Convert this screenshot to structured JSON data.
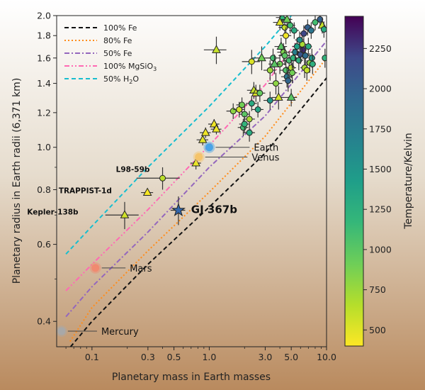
{
  "chart_data": {
    "type": "scatter",
    "title": "",
    "xlabel": "Planetary mass in Earth masses",
    "ylabel": "Planetary radius in Earth radii (6,371 km)",
    "xscale": "log",
    "yscale": "log",
    "xlim": [
      0.05,
      10.0
    ],
    "ylim": [
      0.35,
      2.0
    ],
    "x_ticks": [
      0.1,
      0.3,
      0.5,
      1.0,
      3.0,
      5.0,
      10.0
    ],
    "x_tick_labels": [
      "0.1",
      "0.3",
      "0.5",
      "1.0",
      "3.0",
      "5.0",
      "10.0"
    ],
    "y_ticks": [
      0.4,
      0.6,
      0.8,
      1.0,
      1.2,
      1.4,
      1.6,
      1.8,
      2.0
    ],
    "y_tick_labels": [
      "0.4",
      "0.6",
      "0.8",
      "1.0",
      "1.2",
      "1.4",
      "1.6",
      "1.8",
      "2.0"
    ],
    "legend_position": "top-left",
    "colorbar": {
      "label": "Temperature/Kelvin",
      "min": 400,
      "max": 2450,
      "ticks": [
        500,
        750,
        1000,
        1250,
        1500,
        1750,
        2000,
        2250
      ],
      "colormap": "viridis_r"
    },
    "composition_curves": [
      {
        "label": "100% Fe",
        "color": "#111111",
        "dash": "dashed",
        "points": [
          [
            0.06,
            0.34
          ],
          [
            0.1,
            0.4
          ],
          [
            0.3,
            0.54
          ],
          [
            1.0,
            0.73
          ],
          [
            3.0,
            0.97
          ],
          [
            10.0,
            1.44
          ]
        ]
      },
      {
        "label": "80% Fe",
        "color": "#ff8c1a",
        "dash": "dotted",
        "points": [
          [
            0.065,
            0.36
          ],
          [
            0.1,
            0.43
          ],
          [
            0.3,
            0.58
          ],
          [
            1.0,
            0.79
          ],
          [
            3.0,
            1.06
          ],
          [
            10.0,
            1.6
          ]
        ]
      },
      {
        "label": "50% Fe",
        "color": "#9467bd",
        "dash": "dashdot",
        "points": [
          [
            0.06,
            0.41
          ],
          [
            0.1,
            0.48
          ],
          [
            0.3,
            0.64
          ],
          [
            1.0,
            0.9
          ],
          [
            3.0,
            1.18
          ],
          [
            10.0,
            1.75
          ]
        ]
      },
      {
        "label": "100% MgSiO3",
        "label_base": "100% MgSiO",
        "label_sub": "3",
        "color": "#ff69b4",
        "dash": "dashdotdot",
        "points": [
          [
            0.06,
            0.47
          ],
          [
            0.1,
            0.54
          ],
          [
            0.3,
            0.72
          ],
          [
            1.0,
            1.01
          ],
          [
            3.0,
            1.39
          ],
          [
            7.0,
            1.9
          ]
        ]
      },
      {
        "label": "50% H2O",
        "label_base": "50% H",
        "label_sub": "2",
        "label_tail": "O",
        "color": "#17becf",
        "dash": "dashed",
        "points": [
          [
            0.06,
            0.57
          ],
          [
            0.1,
            0.66
          ],
          [
            0.3,
            0.9
          ],
          [
            1.0,
            1.24
          ],
          [
            3.0,
            1.7
          ],
          [
            5.0,
            2.0
          ]
        ]
      }
    ],
    "solar_system": [
      {
        "name": "Mercury",
        "mass": 0.055,
        "radius": 0.38,
        "color": "#a8a8a8",
        "label_x": 0.12,
        "label_y": 0.38
      },
      {
        "name": "Mars",
        "mass": 0.107,
        "radius": 0.53,
        "color": "#f08a70",
        "label_x": 0.21,
        "label_y": 0.53
      },
      {
        "name": "Venus",
        "mass": 0.815,
        "radius": 0.95,
        "color": "#f5c46b",
        "label_x": 2.3,
        "label_y": 0.95
      },
      {
        "name": "Earth",
        "mass": 1.0,
        "radius": 1.0,
        "color": "#4aa3e6",
        "label_x": 2.4,
        "label_y": 1.0
      }
    ],
    "named_planets": [
      {
        "name": "GJ 367b",
        "mass": 0.546,
        "radius": 0.718,
        "mass_err": 0.078,
        "radius_err": 0.054,
        "marker": "star",
        "color": "#3366aa",
        "label_x": 0.7,
        "label_y": 0.72
      },
      {
        "name": "L98-59b",
        "mass": 0.4,
        "radius": 0.85,
        "mass_err": 0.16,
        "radius_err": 0.05,
        "marker": "circle",
        "temperature": 640,
        "label_x": 0.16,
        "label_y": 0.895
      },
      {
        "name": "TRAPPIST-1d",
        "mass": 0.297,
        "radius": 0.788,
        "mass_err": 0.035,
        "radius_err": 0.01,
        "marker": "triangle",
        "temperature": 420,
        "label_x": 0.052,
        "label_y": 0.8
      },
      {
        "name": "Kepler-138b",
        "mass": 0.19,
        "radius": 0.7,
        "mass_err": 0.06,
        "radius_err": 0.05,
        "marker": "triangle",
        "temperature": 560,
        "label_x": 0.028,
        "label_y": 0.715
      }
    ],
    "points": [
      {
        "mass": 1.15,
        "radius": 1.67,
        "mass_err": 0.25,
        "radius_err": 0.12,
        "temperature": 600,
        "marker": "triangle"
      },
      {
        "mass": 0.88,
        "radius": 1.04,
        "mass_err": 0.1,
        "radius_err": 0.03,
        "temperature": 500,
        "marker": "triangle"
      },
      {
        "mass": 0.93,
        "radius": 1.08,
        "mass_err": 0.1,
        "radius_err": 0.03,
        "temperature": 450,
        "marker": "triangle"
      },
      {
        "mass": 1.1,
        "radius": 1.13,
        "mass_err": 0.12,
        "radius_err": 0.03,
        "temperature": 450,
        "marker": "triangle"
      },
      {
        "mass": 1.15,
        "radius": 1.1,
        "mass_err": 0.12,
        "radius_err": 0.03,
        "temperature": 460,
        "marker": "triangle"
      },
      {
        "mass": 0.77,
        "radius": 0.92,
        "mass_err": 0.08,
        "radius_err": 0.03,
        "temperature": 470,
        "marker": "triangle"
      },
      {
        "mass": 2.3,
        "radius": 1.57,
        "mass_err": 0.4,
        "radius_err": 0.1,
        "temperature": 520,
        "marker": "circle"
      },
      {
        "mass": 2.8,
        "radius": 1.6,
        "mass_err": 0.5,
        "radius_err": 0.1,
        "temperature": 900,
        "marker": "triangle"
      },
      {
        "mass": 2.4,
        "radius": 1.35,
        "mass_err": 0.3,
        "radius_err": 0.06,
        "temperature": 600,
        "marker": "triangle"
      },
      {
        "mass": 2.5,
        "radius": 1.33,
        "mass_err": 0.3,
        "radius_err": 0.06,
        "temperature": 520,
        "marker": "triangle"
      },
      {
        "mass": 2.7,
        "radius": 1.33,
        "mass_err": 0.3,
        "radius_err": 0.06,
        "temperature": 950,
        "marker": "circle"
      },
      {
        "mass": 3.3,
        "radius": 1.28,
        "mass_err": 0.4,
        "radius_err": 0.06,
        "temperature": 1500,
        "marker": "circle"
      },
      {
        "mass": 1.6,
        "radius": 1.21,
        "mass_err": 0.2,
        "radius_err": 0.05,
        "temperature": 800,
        "marker": "circle"
      },
      {
        "mass": 1.8,
        "radius": 1.22,
        "mass_err": 0.2,
        "radius_err": 0.05,
        "temperature": 550,
        "marker": "circle"
      },
      {
        "mass": 1.9,
        "radius": 1.25,
        "mass_err": 0.2,
        "radius_err": 0.05,
        "temperature": 900,
        "marker": "circle"
      },
      {
        "mass": 2.0,
        "radius": 1.19,
        "mass_err": 0.2,
        "radius_err": 0.05,
        "temperature": 1000,
        "marker": "circle"
      },
      {
        "mass": 2.2,
        "radius": 1.16,
        "mass_err": 0.25,
        "radius_err": 0.05,
        "temperature": 700,
        "marker": "circle"
      },
      {
        "mass": 1.95,
        "radius": 1.11,
        "mass_err": 0.2,
        "radius_err": 0.05,
        "temperature": 1100,
        "marker": "circle"
      },
      {
        "mass": 2.0,
        "radius": 1.13,
        "mass_err": 0.2,
        "radius_err": 0.05,
        "temperature": 1200,
        "marker": "circle"
      },
      {
        "mass": 2.3,
        "radius": 1.26,
        "mass_err": 0.25,
        "radius_err": 0.05,
        "temperature": 1300,
        "marker": "circle"
      },
      {
        "mass": 2.6,
        "radius": 1.22,
        "mass_err": 0.3,
        "radius_err": 0.05,
        "temperature": 1350,
        "marker": "circle"
      },
      {
        "mass": 2.2,
        "radius": 1.08,
        "mass_err": 0.25,
        "radius_err": 0.05,
        "temperature": 1300,
        "marker": "circle"
      },
      {
        "mass": 3.5,
        "radius": 1.6,
        "mass_err": 0.5,
        "radius_err": 0.08,
        "temperature": 1100,
        "marker": "circle"
      },
      {
        "mass": 3.7,
        "radius": 1.4,
        "mass_err": 0.5,
        "radius_err": 0.08,
        "temperature": 800,
        "marker": "circle"
      },
      {
        "mass": 3.9,
        "radius": 1.3,
        "mass_err": 0.5,
        "radius_err": 0.08,
        "temperature": 550,
        "marker": "triangle"
      },
      {
        "mass": 4.0,
        "radius": 1.55,
        "mass_err": 0.5,
        "radius_err": 0.08,
        "temperature": 900,
        "marker": "circle"
      },
      {
        "mass": 4.1,
        "radius": 1.7,
        "mass_err": 0.5,
        "radius_err": 0.08,
        "temperature": 1000,
        "marker": "triangle"
      },
      {
        "mass": 4.3,
        "radius": 1.65,
        "mass_err": 0.5,
        "radius_err": 0.08,
        "temperature": 850,
        "marker": "circle"
      },
      {
        "mass": 4.4,
        "radius": 1.62,
        "mass_err": 0.5,
        "radius_err": 0.08,
        "temperature": 1000,
        "marker": "circle"
      },
      {
        "mass": 4.5,
        "radius": 1.5,
        "mass_err": 0.5,
        "radius_err": 0.08,
        "temperature": 1050,
        "marker": "circle"
      },
      {
        "mass": 4.6,
        "radius": 1.45,
        "mass_err": 0.5,
        "radius_err": 0.08,
        "temperature": 1800,
        "marker": "circle"
      },
      {
        "mass": 4.7,
        "radius": 1.42,
        "mass_err": 0.5,
        "radius_err": 0.08,
        "temperature": 1950,
        "marker": "circle"
      },
      {
        "mass": 4.8,
        "radius": 1.58,
        "mass_err": 0.5,
        "radius_err": 0.08,
        "temperature": 1100,
        "marker": "circle"
      },
      {
        "mass": 5.0,
        "radius": 1.52,
        "mass_err": 0.5,
        "radius_err": 0.08,
        "temperature": 650,
        "marker": "circle"
      },
      {
        "mass": 5.1,
        "radius": 1.48,
        "mass_err": 0.5,
        "radius_err": 0.08,
        "temperature": 900,
        "marker": "circle"
      },
      {
        "mass": 5.2,
        "radius": 1.6,
        "mass_err": 0.5,
        "radius_err": 0.08,
        "temperature": 1200,
        "marker": "circle"
      },
      {
        "mass": 5.4,
        "radius": 1.65,
        "mass_err": 0.5,
        "radius_err": 0.08,
        "temperature": 1700,
        "marker": "circle"
      },
      {
        "mass": 5.6,
        "radius": 1.7,
        "mass_err": 0.5,
        "radius_err": 0.08,
        "temperature": 1400,
        "marker": "circle"
      },
      {
        "mass": 5.8,
        "radius": 1.58,
        "mass_err": 0.5,
        "radius_err": 0.08,
        "temperature": 1250,
        "marker": "circle"
      },
      {
        "mass": 6.0,
        "radius": 1.63,
        "mass_err": 0.5,
        "radius_err": 0.08,
        "temperature": 2100,
        "marker": "circle"
      },
      {
        "mass": 6.3,
        "radius": 1.67,
        "mass_err": 0.5,
        "radius_err": 0.08,
        "temperature": 2300,
        "marker": "circle"
      },
      {
        "mass": 6.6,
        "radius": 1.62,
        "mass_err": 0.5,
        "radius_err": 0.08,
        "temperature": 1900,
        "marker": "circle"
      },
      {
        "mass": 7.0,
        "radius": 1.7,
        "mass_err": 0.5,
        "radius_err": 0.08,
        "temperature": 1300,
        "marker": "circle"
      },
      {
        "mass": 6.5,
        "radius": 1.52,
        "mass_err": 0.5,
        "radius_err": 0.08,
        "temperature": 700,
        "marker": "circle"
      },
      {
        "mass": 6.8,
        "radius": 1.5,
        "mass_err": 0.5,
        "radius_err": 0.08,
        "temperature": 600,
        "marker": "circle"
      },
      {
        "mass": 7.2,
        "radius": 1.56,
        "mass_err": 0.5,
        "radius_err": 0.08,
        "temperature": 800,
        "marker": "circle"
      },
      {
        "mass": 7.5,
        "radius": 1.6,
        "mass_err": 0.5,
        "radius_err": 0.08,
        "temperature": 1500,
        "marker": "circle"
      },
      {
        "mass": 7.6,
        "radius": 1.55,
        "mass_err": 0.5,
        "radius_err": 0.08,
        "temperature": 1250,
        "marker": "circle"
      },
      {
        "mass": 4.4,
        "radius": 1.88,
        "mass_err": 0.5,
        "radius_err": 0.08,
        "temperature": 600,
        "marker": "circle"
      },
      {
        "mass": 4.5,
        "radius": 1.8,
        "mass_err": 0.5,
        "radius_err": 0.08,
        "temperature": 450,
        "marker": "circle"
      },
      {
        "mass": 4.2,
        "radius": 1.98,
        "mass_err": 0.5,
        "radius_err": 0.08,
        "temperature": 1200,
        "marker": "triangle"
      },
      {
        "mass": 4.6,
        "radius": 1.96,
        "mass_err": 0.5,
        "radius_err": 0.08,
        "temperature": 900,
        "marker": "triangle"
      },
      {
        "mass": 4.0,
        "radius": 1.93,
        "mass_err": 0.5,
        "radius_err": 0.08,
        "temperature": 500,
        "marker": "triangle"
      },
      {
        "mass": 4.9,
        "radius": 1.9,
        "mass_err": 0.5,
        "radius_err": 0.08,
        "temperature": 1100,
        "marker": "circle"
      },
      {
        "mass": 5.3,
        "radius": 1.85,
        "mass_err": 0.5,
        "radius_err": 0.08,
        "temperature": 1300,
        "marker": "circle"
      },
      {
        "mass": 6.4,
        "radius": 1.82,
        "mass_err": 0.5,
        "radius_err": 0.08,
        "temperature": 2200,
        "marker": "circle"
      },
      {
        "mass": 6.9,
        "radius": 1.88,
        "mass_err": 0.5,
        "radius_err": 0.08,
        "temperature": 2000,
        "marker": "circle"
      },
      {
        "mass": 7.4,
        "radius": 1.85,
        "mass_err": 0.5,
        "radius_err": 0.08,
        "temperature": 1800,
        "marker": "circle"
      },
      {
        "mass": 8.0,
        "radius": 1.93,
        "mass_err": 0.5,
        "radius_err": 0.08,
        "temperature": 1100,
        "marker": "circle"
      },
      {
        "mass": 8.8,
        "radius": 1.96,
        "mass_err": 0.5,
        "radius_err": 0.08,
        "temperature": 2000,
        "marker": "circle"
      },
      {
        "mass": 9.2,
        "radius": 1.9,
        "mass_err": 0.5,
        "radius_err": 0.08,
        "temperature": 600,
        "marker": "triangle"
      },
      {
        "mass": 9.5,
        "radius": 1.86,
        "mass_err": 0.5,
        "radius_err": 0.08,
        "temperature": 1300,
        "marker": "circle"
      },
      {
        "mass": 9.7,
        "radius": 1.6,
        "mass_err": 0.5,
        "radius_err": 0.08,
        "temperature": 1200,
        "marker": "circle"
      },
      {
        "mass": 3.6,
        "radius": 1.55,
        "mass_err": 0.4,
        "radius_err": 0.08,
        "temperature": 1000,
        "marker": "triangle"
      },
      {
        "mass": 3.3,
        "radius": 1.5,
        "mass_err": 0.4,
        "radius_err": 0.08,
        "temperature": 750,
        "marker": "circle"
      },
      {
        "mass": 5.0,
        "radius": 1.3,
        "mass_err": 0.6,
        "radius_err": 0.06,
        "temperature": 1000,
        "marker": "triangle"
      },
      {
        "mass": 6.2,
        "radius": 1.72,
        "mass_err": 0.5,
        "radius_err": 0.08,
        "temperature": 700,
        "marker": "circle"
      },
      {
        "mass": 5.9,
        "radius": 1.76,
        "mass_err": 0.5,
        "radius_err": 0.08,
        "temperature": 1600,
        "marker": "circle"
      }
    ]
  }
}
